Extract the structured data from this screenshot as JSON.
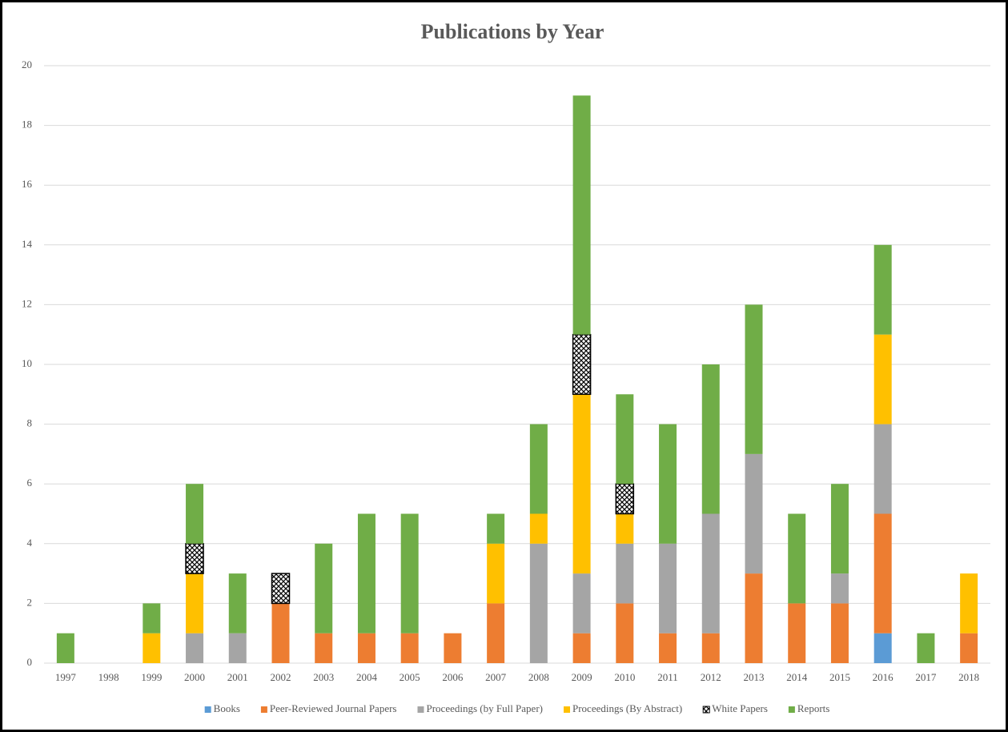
{
  "chart_data": {
    "type": "stacked_bar",
    "title": "Publications by Year",
    "categories": [
      "1997",
      "1998",
      "1999",
      "2000",
      "2001",
      "2002",
      "2003",
      "2004",
      "2005",
      "2006",
      "2007",
      "2008",
      "2009",
      "2010",
      "2011",
      "2012",
      "2013",
      "2014",
      "2015",
      "2016",
      "2017",
      "2018"
    ],
    "series": [
      {
        "name": "Books",
        "color": "#5b9bd5",
        "values": [
          0,
          0,
          0,
          0,
          0,
          0,
          0,
          0,
          0,
          0,
          0,
          0,
          0,
          0,
          0,
          0,
          0,
          0,
          0,
          1,
          0,
          0
        ]
      },
      {
        "name": "Peer-Reviewed Journal Papers",
        "color": "#ed7d31",
        "values": [
          0,
          0,
          0,
          0,
          0,
          2,
          1,
          1,
          1,
          1,
          2,
          0,
          1,
          2,
          1,
          1,
          3,
          2,
          2,
          4,
          0,
          1
        ]
      },
      {
        "name": "Proceedings (by Full Paper)",
        "color": "#a5a5a5",
        "values": [
          0,
          0,
          0,
          1,
          1,
          0,
          0,
          0,
          0,
          0,
          0,
          4,
          2,
          2,
          3,
          4,
          4,
          0,
          1,
          3,
          0,
          0
        ]
      },
      {
        "name": "Proceedings (By Abstract)",
        "color": "#ffc000",
        "values": [
          0,
          0,
          1,
          2,
          0,
          0,
          0,
          0,
          0,
          0,
          2,
          1,
          6,
          1,
          0,
          0,
          0,
          0,
          0,
          3,
          0,
          2
        ]
      },
      {
        "name": "White Papers",
        "color": "#ffffff",
        "pattern": "crosshatch",
        "values": [
          0,
          0,
          0,
          1,
          0,
          1,
          0,
          0,
          0,
          0,
          0,
          0,
          2,
          1,
          0,
          0,
          0,
          0,
          0,
          0,
          0,
          0
        ]
      },
      {
        "name": "Reports",
        "color": "#70ad47",
        "values": [
          1,
          0,
          1,
          2,
          2,
          0,
          3,
          4,
          4,
          0,
          1,
          3,
          8,
          3,
          4,
          5,
          5,
          3,
          3,
          3,
          1,
          0
        ]
      }
    ],
    "ylim": [
      0,
      20
    ],
    "yticks": [
      0,
      2,
      4,
      6,
      8,
      10,
      12,
      14,
      16,
      18,
      20
    ],
    "grid": true,
    "legend": "bottom"
  }
}
